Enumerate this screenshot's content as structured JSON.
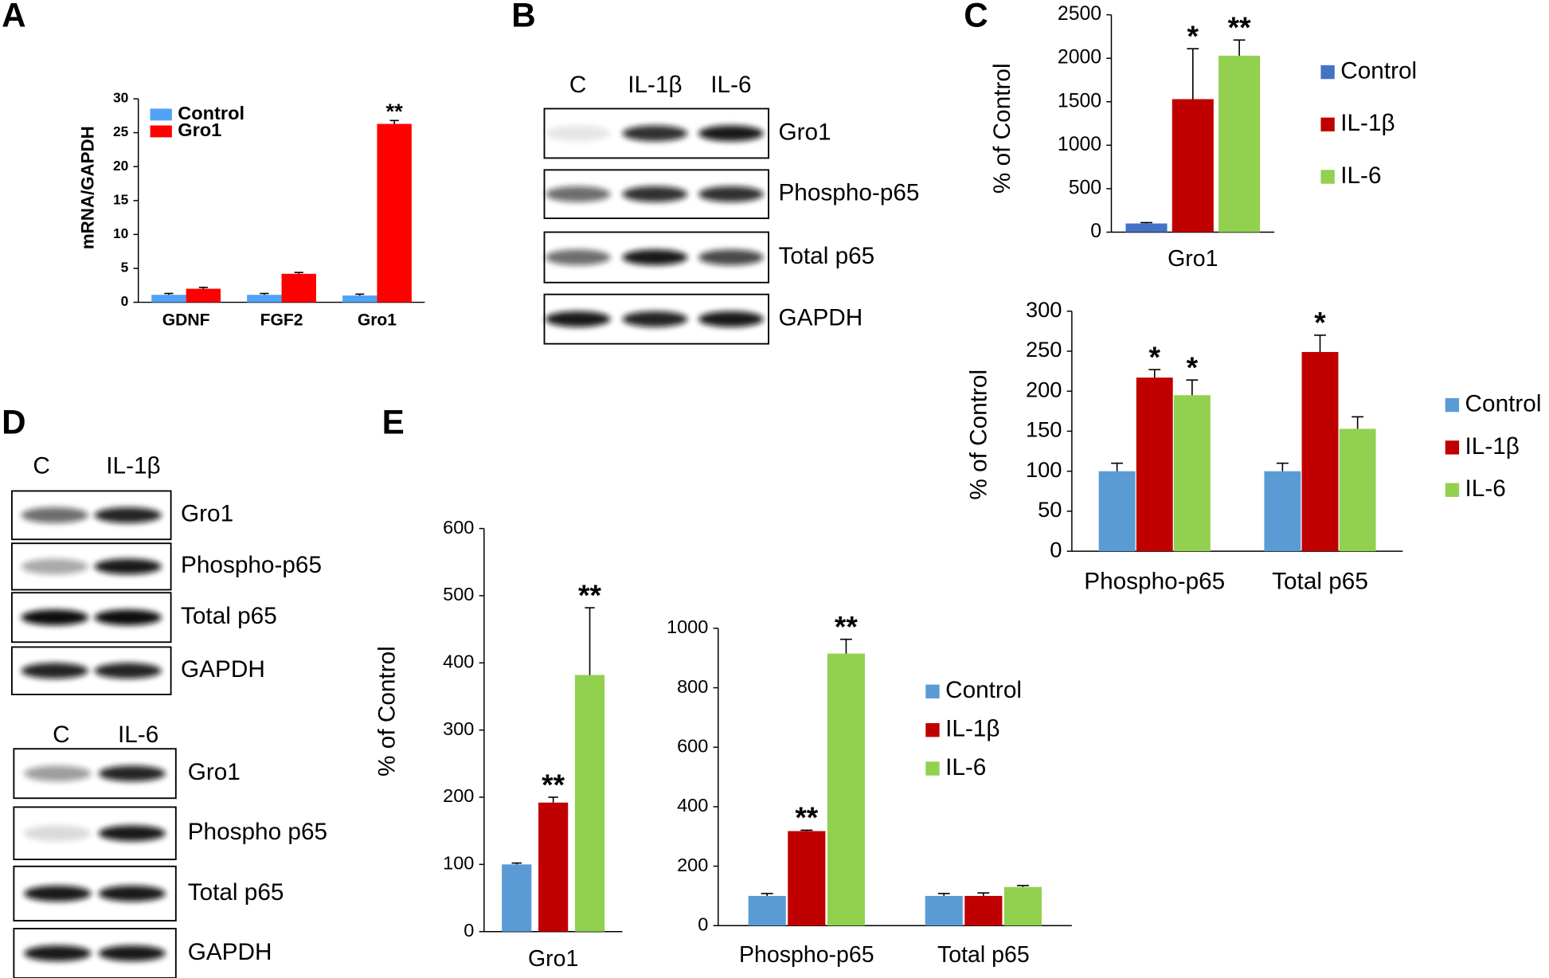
{
  "panel_labels": [
    "A",
    "B",
    "C",
    "D",
    "E"
  ],
  "chart_data": [
    {
      "type": "bar",
      "y_label": "mRNA/GAPDH",
      "categories": [
        "GDNF",
        "FGF2",
        "Gro1"
      ],
      "ylim": [
        0,
        30
      ],
      "yticks": [
        0,
        5,
        10,
        15,
        20,
        25,
        30
      ],
      "series": [
        {
          "name": "Control",
          "color": "#4fa3f7",
          "values": [
            1.1,
            1.1,
            1.0
          ],
          "errors": [
            0.2,
            0.2,
            0.2
          ],
          "significance": [
            null,
            null,
            null
          ]
        },
        {
          "name": "Gro1",
          "color": "#ff0000",
          "values": [
            2.0,
            4.2,
            26.3
          ],
          "errors": [
            0.2,
            0.2,
            0.5
          ],
          "significance": [
            null,
            null,
            "**"
          ]
        }
      ]
    },
    {
      "type": "bar",
      "y_label": "% of Control",
      "categories": [
        "Gro1"
      ],
      "ylim": [
        0,
        2500
      ],
      "yticks": [
        0,
        500,
        1000,
        1500,
        2000,
        2500
      ],
      "series": [
        {
          "name": "Control",
          "color": "#4472c4",
          "values": [
            100
          ],
          "errors": [
            10
          ],
          "significance": [
            null
          ]
        },
        {
          "name": "IL-1β",
          "color": "#c00000",
          "values": [
            1530
          ],
          "errors": [
            580
          ],
          "significance": [
            "*"
          ]
        },
        {
          "name": "IL-6",
          "color": "#92d050",
          "values": [
            2030
          ],
          "errors": [
            180
          ],
          "significance": [
            "**"
          ]
        }
      ]
    },
    {
      "type": "bar",
      "y_label": "% of Control",
      "categories": [
        "Phospho-p65",
        "Total p65"
      ],
      "ylim": [
        0,
        300
      ],
      "yticks": [
        0,
        50,
        100,
        150,
        200,
        250,
        300
      ],
      "series": [
        {
          "name": "Control",
          "color": "#5b9bd5",
          "values": [
            100,
            100
          ],
          "errors": [
            10,
            10
          ],
          "significance": [
            null,
            null
          ]
        },
        {
          "name": "IL-1β",
          "color": "#c00000",
          "values": [
            217,
            249
          ],
          "errors": [
            10,
            21
          ],
          "significance": [
            "*",
            "*"
          ]
        },
        {
          "name": "IL-6",
          "color": "#92d050",
          "values": [
            195,
            153
          ],
          "errors": [
            19,
            15
          ],
          "significance": [
            "*",
            null
          ]
        }
      ]
    },
    {
      "type": "bar",
      "y_label": "% of Control",
      "categories": [
        "Gro1"
      ],
      "ylim": [
        0,
        600
      ],
      "yticks": [
        0,
        100,
        200,
        300,
        400,
        500,
        600
      ],
      "series": [
        {
          "name": "Control",
          "color": "#5b9bd5",
          "values": [
            100
          ],
          "errors": [
            2
          ],
          "significance": [
            null
          ]
        },
        {
          "name": "IL-1β",
          "color": "#c00000",
          "values": [
            192
          ],
          "errors": [
            8
          ],
          "significance": [
            "**"
          ]
        },
        {
          "name": "IL-6",
          "color": "#92d050",
          "values": [
            382
          ],
          "errors": [
            100
          ],
          "significance": [
            "**"
          ]
        }
      ]
    },
    {
      "type": "bar",
      "categories": [
        "Phospho-p65",
        "Total p65"
      ],
      "ylim": [
        0,
        1000
      ],
      "yticks": [
        0,
        200,
        400,
        600,
        800,
        1000
      ],
      "series": [
        {
          "name": "Control",
          "color": "#5b9bd5",
          "values": [
            100,
            100
          ],
          "errors": [
            8,
            8
          ],
          "significance": [
            null,
            null
          ]
        },
        {
          "name": "IL-1β",
          "color": "#c00000",
          "values": [
            318,
            100
          ],
          "errors": [
            3,
            10
          ],
          "significance": [
            "**",
            null
          ]
        },
        {
          "name": "IL-6",
          "color": "#92d050",
          "values": [
            915,
            130
          ],
          "errors": [
            48,
            5
          ],
          "significance": [
            "**",
            null
          ]
        }
      ]
    }
  ],
  "blots": [
    {
      "lanes": [
        "C",
        "IL-1β",
        "IL-6"
      ],
      "rows": [
        "Gro1",
        "Phospho-p65",
        "Total p65",
        "GAPDH"
      ]
    },
    {
      "lanes": [
        "C",
        "IL-1β"
      ],
      "rows": [
        "Gro1",
        "Phospho-p65",
        "Total p65",
        "GAPDH"
      ]
    },
    {
      "lanes": [
        "C",
        "IL-6"
      ],
      "rows": [
        "Gro1",
        "Phospho p65",
        "Total p65",
        "GAPDH"
      ]
    }
  ]
}
